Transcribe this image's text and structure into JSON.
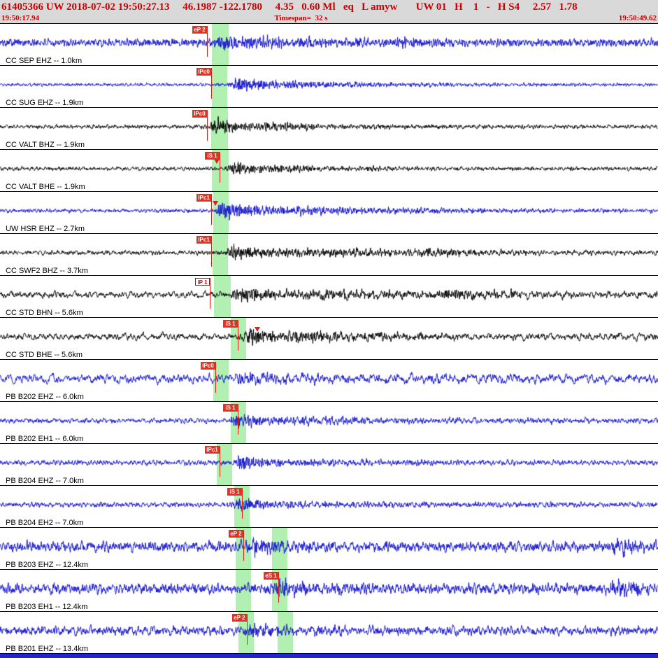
{
  "header": {
    "line1": "61405366 UW 2018-07-02 19:50:27.13     46.1987 -122.1780     4.35   0.60 Ml   eq   L amyw       UW 01   H    1   -   H S4     2.57   1.78",
    "start_time": "19:50:17.94",
    "timespan_label": "Timespan=  32 s",
    "end_time": "19:50:49.62"
  },
  "colors": {
    "header_text": "#cc0000",
    "band": "#b2f0b2",
    "bottom_bar": "#2424cc",
    "pick_red": "#e02010"
  },
  "traces": [
    {
      "label": "CC SEP EHZ -- 1.0km",
      "color": "#1212cc",
      "seed": 101,
      "noise": {
        "amp": 6,
        "k": 0.5
      },
      "bursts": [
        {
          "start": 0.315,
          "rise": 0.015,
          "decay": 0.1,
          "amp": 10,
          "k": 0.8
        },
        {
          "start": 0.36,
          "rise": 0.05,
          "decay": 0.25,
          "amp": 5,
          "k": 0.6
        },
        {
          "start": 0.595,
          "rise": 0.02,
          "decay": 0.06,
          "amp": 8,
          "k": 0.7
        }
      ],
      "picks": [
        {
          "label": "eP 2",
          "x": 0.3145,
          "style": "filled"
        }
      ],
      "markers": [],
      "bands": [
        [
          0.322,
          0.3475
        ]
      ]
    },
    {
      "label": "CC SUG EHZ -- 1.9km",
      "color": "#1212cc",
      "seed": 102,
      "noise": {
        "amp": 2.5,
        "k": 0.5
      },
      "bursts": [
        {
          "start": 0.345,
          "rise": 0.012,
          "decay": 0.07,
          "amp": 12,
          "k": 0.8
        },
        {
          "start": 0.4,
          "rise": 0.05,
          "decay": 0.3,
          "amp": 4,
          "k": 0.6
        }
      ],
      "picks": [
        {
          "label": "IPc0",
          "x": 0.321,
          "style": "filled"
        }
      ],
      "markers": [],
      "bands": [
        [
          0.322,
          0.345
        ]
      ]
    },
    {
      "label": "CC VALT BHZ -- 1.9km",
      "color": "#000000",
      "seed": 103,
      "noise": {
        "amp": 3,
        "k": 0.45
      },
      "bursts": [
        {
          "start": 0.317,
          "rise": 0.012,
          "decay": 0.05,
          "amp": 13,
          "k": 0.75
        },
        {
          "start": 0.36,
          "rise": 0.04,
          "decay": 0.2,
          "amp": 6,
          "k": 0.6
        }
      ],
      "picks": [
        {
          "label": "IPc0",
          "x": 0.3145,
          "style": "filled"
        }
      ],
      "markers": [],
      "bands": [
        [
          0.321,
          0.3465
        ]
      ]
    },
    {
      "label": "CC VALT BHE -- 1.9km",
      "color": "#000000",
      "seed": 104,
      "noise": {
        "amp": 3,
        "k": 0.45
      },
      "bursts": [
        {
          "start": 0.342,
          "rise": 0.012,
          "decay": 0.05,
          "amp": 12,
          "k": 0.75
        },
        {
          "start": 0.38,
          "rise": 0.04,
          "decay": 0.2,
          "amp": 5,
          "k": 0.6
        }
      ],
      "picks": [
        {
          "label": "iS 1",
          "x": 0.3337,
          "style": "filled"
        }
      ],
      "markers": [
        {
          "x": 0.329
        }
      ],
      "bands": [
        [
          0.322,
          0.3475
        ]
      ]
    },
    {
      "label": "UW HSR EHZ -- 2.7km",
      "color": "#1212cc",
      "seed": 105,
      "noise": {
        "amp": 3,
        "k": 0.5
      },
      "bursts": [
        {
          "start": 0.325,
          "rise": 0.01,
          "decay": 0.08,
          "amp": 15,
          "k": 0.9
        },
        {
          "start": 0.4,
          "rise": 0.05,
          "decay": 0.3,
          "amp": 6,
          "k": 0.7
        }
      ],
      "picks": [
        {
          "label": "IPc1",
          "x": 0.321,
          "style": "filled"
        }
      ],
      "markers": [
        {
          "x": 0.327
        }
      ],
      "bands": [
        [
          0.324,
          0.3475
        ]
      ]
    },
    {
      "label": "CC SWF2 BHZ -- 3.7km",
      "color": "#000000",
      "seed": 106,
      "noise": {
        "amp": 3.5,
        "k": 0.4
      },
      "bursts": [
        {
          "start": 0.34,
          "rise": 0.015,
          "decay": 0.09,
          "amp": 12,
          "k": 0.7
        },
        {
          "start": 0.42,
          "rise": 0.05,
          "decay": 0.3,
          "amp": 6,
          "k": 0.55
        },
        {
          "start": 0.62,
          "rise": 0.03,
          "decay": 0.1,
          "amp": 5,
          "k": 0.6
        }
      ],
      "picks": [
        {
          "label": "IPc1",
          "x": 0.321,
          "style": "filled"
        }
      ],
      "markers": [],
      "bands": [
        [
          0.323,
          0.3465
        ]
      ]
    },
    {
      "label": "CC STD BHN -- 5.6km",
      "color": "#000000",
      "seed": 107,
      "noise": {
        "amp": 5,
        "k": 0.25
      },
      "bursts": [
        {
          "start": 0.345,
          "rise": 0.015,
          "decay": 0.08,
          "amp": 12,
          "k": 0.7
        },
        {
          "start": 0.42,
          "rise": 0.06,
          "decay": 0.3,
          "amp": 7,
          "k": 0.5
        },
        {
          "start": 0.65,
          "rise": 0.03,
          "decay": 0.12,
          "amp": 7,
          "k": 0.55
        }
      ],
      "picks": [
        {
          "label": "iP 1",
          "x": 0.3188,
          "style": "outline"
        }
      ],
      "markers": [],
      "bands": [
        [
          0.325,
          0.3507
        ]
      ]
    },
    {
      "label": "CC STD BHE -- 5.6km",
      "color": "#000000",
      "seed": 108,
      "noise": {
        "amp": 5,
        "k": 0.22
      },
      "bursts": [
        {
          "start": 0.365,
          "rise": 0.01,
          "decay": 0.05,
          "amp": 15,
          "k": 0.75
        },
        {
          "start": 0.4,
          "rise": 0.05,
          "decay": 0.25,
          "amp": 8,
          "k": 0.6
        }
      ],
      "picks": [
        {
          "label": "iS 1",
          "x": 0.3613,
          "style": "filled"
        }
      ],
      "markers": [
        {
          "x": 0.391
        }
      ],
      "bands": [
        [
          0.3507,
          0.374
        ]
      ]
    },
    {
      "label": "PB B202 EHZ -- 6.0km",
      "color": "#1212cc",
      "seed": 109,
      "noise": {
        "amp": 7,
        "k": 0.2
      },
      "bursts": [
        {
          "start": 0.345,
          "rise": 0.02,
          "decay": 0.08,
          "amp": 10,
          "k": 0.6
        },
        {
          "start": 0.42,
          "rise": 0.06,
          "decay": 0.3,
          "amp": 4,
          "k": 0.4
        }
      ],
      "picks": [
        {
          "label": "IPc0",
          "x": 0.3273,
          "style": "filled"
        }
      ],
      "markers": [],
      "bands": [
        [
          0.324,
          0.3475
        ]
      ]
    },
    {
      "label": "PB B202 EH1 -- 6.0km",
      "color": "#1212cc",
      "seed": 110,
      "noise": {
        "amp": 4,
        "k": 0.35
      },
      "bursts": [
        {
          "start": 0.345,
          "rise": 0.015,
          "decay": 0.08,
          "amp": 11,
          "k": 0.7
        },
        {
          "start": 0.42,
          "rise": 0.05,
          "decay": 0.3,
          "amp": 5,
          "k": 0.5
        }
      ],
      "picks": [
        {
          "label": "iS 1",
          "x": 0.3613,
          "style": "filled"
        }
      ],
      "markers": [],
      "bands": [
        [
          0.3507,
          0.374
        ]
      ]
    },
    {
      "label": "PB B204 EHZ -- 7.0km",
      "color": "#1212cc",
      "seed": 111,
      "noise": {
        "amp": 4,
        "k": 0.4
      },
      "bursts": [
        {
          "start": 0.355,
          "rise": 0.01,
          "decay": 0.05,
          "amp": 12,
          "k": 0.8
        },
        {
          "start": 0.41,
          "rise": 0.05,
          "decay": 0.25,
          "amp": 4,
          "k": 0.55
        }
      ],
      "picks": [
        {
          "label": "IPc1",
          "x": 0.3337,
          "style": "filled"
        }
      ],
      "markers": [],
      "bands": [
        [
          0.3294,
          0.3528
        ]
      ]
    },
    {
      "label": "PB B204 EH2 -- 7.0km",
      "color": "#1212cc",
      "seed": 112,
      "noise": {
        "amp": 4,
        "k": 0.4
      },
      "bursts": [
        {
          "start": 0.35,
          "rise": 0.012,
          "decay": 0.06,
          "amp": 11,
          "k": 0.75
        },
        {
          "start": 0.41,
          "rise": 0.05,
          "decay": 0.25,
          "amp": 4,
          "k": 0.55
        }
      ],
      "picks": [
        {
          "label": "iS 1",
          "x": 0.3677,
          "style": "filled"
        }
      ],
      "markers": [],
      "bands": [
        [
          0.356,
          0.3794
        ]
      ]
    },
    {
      "label": "PB B203 EHZ -- 12.4km",
      "color": "#1212cc",
      "seed": 113,
      "noise": {
        "amp": 8,
        "k": 0.35
      },
      "bursts": [
        {
          "start": 0.37,
          "rise": 0.015,
          "decay": 0.06,
          "amp": 12,
          "k": 0.7
        },
        {
          "start": 0.92,
          "rise": 0.02,
          "decay": 0.05,
          "amp": 12,
          "k": 0.7
        }
      ],
      "picks": [
        {
          "label": "eP 2",
          "x": 0.3698,
          "style": "filled"
        }
      ],
      "markers": [],
      "bands": [
        [
          0.358,
          0.3815
        ],
        [
          0.4134,
          0.4368
        ]
      ]
    },
    {
      "label": "PB B203 EH1 -- 12.4km",
      "color": "#1212cc",
      "seed": 114,
      "noise": {
        "amp": 8,
        "k": 0.35
      },
      "bursts": [
        {
          "start": 0.41,
          "rise": 0.015,
          "decay": 0.07,
          "amp": 11,
          "k": 0.7
        },
        {
          "start": 0.915,
          "rise": 0.02,
          "decay": 0.05,
          "amp": 13,
          "k": 0.7
        }
      ],
      "picks": [
        {
          "label": "eS 1",
          "x": 0.423,
          "style": "filled"
        }
      ],
      "markers": [],
      "bands": [
        [
          0.358,
          0.3815
        ],
        [
          0.4134,
          0.4368
        ]
      ]
    },
    {
      "label": "PB B201 EHZ -- 13.4km",
      "color": "#1212cc",
      "seed": 115,
      "noise": {
        "amp": 7,
        "k": 0.35
      },
      "bursts": [
        {
          "start": 0.37,
          "rise": 0.015,
          "decay": 0.07,
          "amp": 11,
          "k": 0.7
        },
        {
          "start": 0.44,
          "rise": 0.05,
          "decay": 0.25,
          "amp": 4,
          "k": 0.5
        }
      ],
      "picks": [
        {
          "label": "eP 2",
          "x": 0.375,
          "style": "filled"
        }
      ],
      "markers": [],
      "bands": [
        [
          0.3624,
          0.3858
        ],
        [
          0.422,
          0.4455
        ]
      ]
    }
  ]
}
